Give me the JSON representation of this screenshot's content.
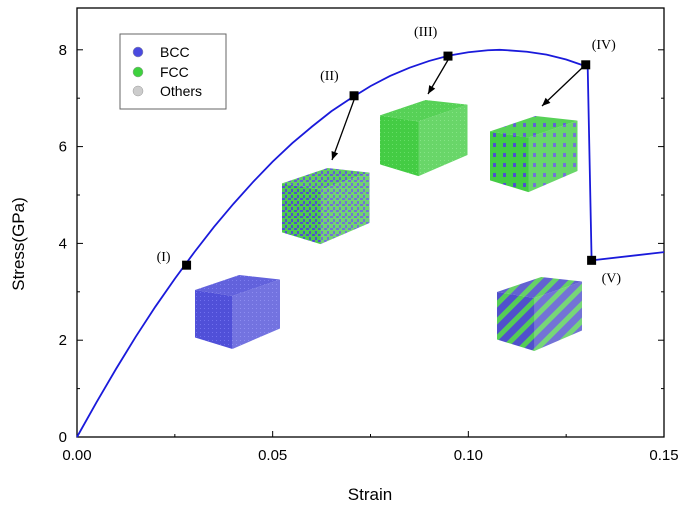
{
  "chart_data": {
    "type": "line",
    "xlabel": "Strain",
    "ylabel": "Stress(GPa)",
    "xlim": [
      0,
      0.15
    ],
    "ylim": [
      0,
      8.8
    ],
    "xticks": [
      "0.00",
      "0.05",
      "0.10",
      "0.15"
    ],
    "xtick_values": [
      0,
      0.05,
      0.1,
      0.15
    ],
    "yticks": [
      "0",
      "2",
      "4",
      "6",
      "8"
    ],
    "ytick_values": [
      0,
      2,
      4,
      6,
      8
    ],
    "grid": false,
    "series": [
      {
        "color": "#1a1adb",
        "x": [
          0,
          0.005,
          0.01,
          0.015,
          0.02,
          0.025,
          0.03,
          0.035,
          0.04,
          0.045,
          0.05,
          0.055,
          0.06,
          0.065,
          0.07,
          0.075,
          0.08,
          0.085,
          0.09,
          0.095,
          0.1,
          0.105,
          0.108,
          0.11,
          0.115,
          0.12,
          0.125,
          0.13,
          0.1305,
          0.1315,
          0.15
        ],
        "y": [
          0,
          0.72,
          1.41,
          2.07,
          2.69,
          3.27,
          3.82,
          4.34,
          4.82,
          5.27,
          5.69,
          6.07,
          6.41,
          6.73,
          7.0,
          7.25,
          7.46,
          7.63,
          7.77,
          7.88,
          7.95,
          7.99,
          8.0,
          7.99,
          7.96,
          7.9,
          7.8,
          7.66,
          7.65,
          3.65,
          3.82
        ]
      }
    ],
    "annotations": [
      {
        "label": "(I)",
        "x": 0.028,
        "y": 3.55
      },
      {
        "label": "(II)",
        "x": 0.0708,
        "y": 7.05
      },
      {
        "label": "(III)",
        "x": 0.0948,
        "y": 7.87
      },
      {
        "label": "(IV)",
        "x": 0.13,
        "y": 7.69
      },
      {
        "label": "(V)",
        "x": 0.1315,
        "y": 3.65
      }
    ],
    "legend": {
      "placement": "top-left",
      "entries": [
        {
          "label": "BCC",
          "color": "#4a4adf"
        },
        {
          "label": "FCC",
          "color": "#3ed13e"
        },
        {
          "label": "Others",
          "color": "#cccccc"
        }
      ]
    }
  }
}
